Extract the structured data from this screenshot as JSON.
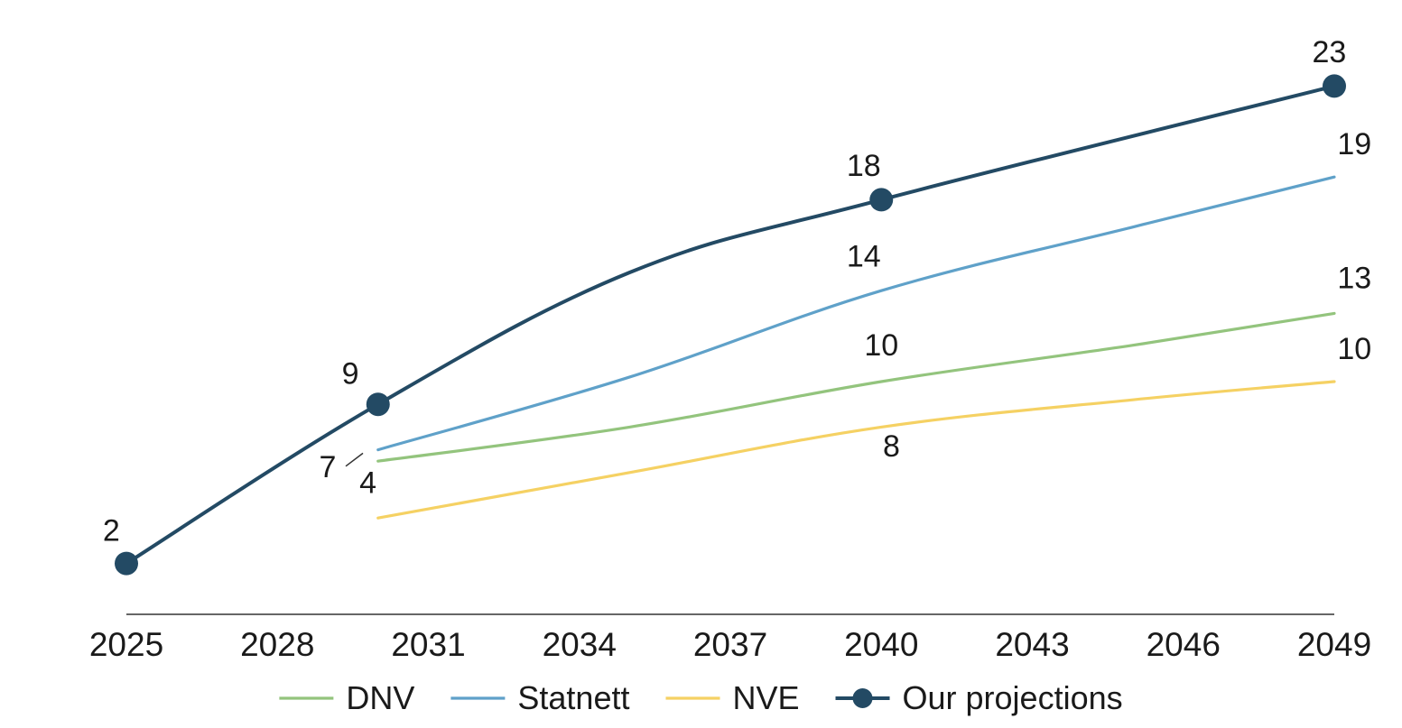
{
  "chart_data": {
    "type": "line",
    "title": "",
    "xlabel": "",
    "ylabel": "",
    "x_ticks": [
      "2025",
      "2028",
      "2031",
      "2034",
      "2037",
      "2040",
      "2043",
      "2046",
      "2049"
    ],
    "x_range": [
      2025,
      2049
    ],
    "y_range": [
      0,
      25
    ],
    "grid": false,
    "legend_position": "bottom",
    "series": [
      {
        "name": "DNV",
        "color": "#93c47d",
        "marker": false,
        "points": [
          [
            2030,
            6.5
          ],
          [
            2035,
            8
          ],
          [
            2040,
            10
          ],
          [
            2045,
            11.6
          ],
          [
            2049,
            13
          ]
        ],
        "labels": [
          {
            "x": 2030,
            "text": "4",
            "dx": -0.2,
            "dy": -1.4
          },
          {
            "x": 2040,
            "text": "10",
            "dx": 0,
            "dy": 1.15
          },
          {
            "x": 2049,
            "text": "13",
            "dx": 0.4,
            "dy": 1.1
          }
        ]
      },
      {
        "name": "Statnett",
        "color": "#5fa1c9",
        "marker": false,
        "points": [
          [
            2030,
            7
          ],
          [
            2035,
            10.2
          ],
          [
            2040,
            14
          ],
          [
            2045,
            16.8
          ],
          [
            2049,
            19
          ]
        ],
        "labels": [
          {
            "x": 2040,
            "text": "14",
            "dx": -0.35,
            "dy": 1.05
          },
          {
            "x": 2049,
            "text": "19",
            "dx": 0.4,
            "dy": 1.0
          }
        ]
      },
      {
        "name": "NVE",
        "color": "#f5d163",
        "marker": false,
        "points": [
          [
            2030,
            4
          ],
          [
            2035,
            6
          ],
          [
            2040,
            8
          ],
          [
            2045,
            9.2
          ],
          [
            2049,
            10
          ]
        ],
        "labels": [
          {
            "x": 2040,
            "text": "8",
            "dx": 0.2,
            "dy": -1.3
          },
          {
            "x": 2049,
            "text": "10",
            "dx": 0.4,
            "dy": 1.0
          }
        ]
      },
      {
        "name": "Our projections",
        "color": "#234a64",
        "marker": true,
        "points": [
          [
            2025,
            2
          ],
          [
            2030,
            9
          ],
          [
            2035,
            14.8
          ],
          [
            2040,
            18
          ],
          [
            2049,
            23
          ]
        ],
        "marker_x": [
          2025,
          2030,
          2040,
          2049
        ],
        "labels": [
          {
            "x": 2025,
            "text": "2",
            "dx": -0.3,
            "dy": 1.0
          },
          {
            "x": 2030,
            "text": "9",
            "dx": -0.55,
            "dy": 0.9
          },
          {
            "x": 2040,
            "text": "18",
            "dx": -0.35,
            "dy": 1.05
          },
          {
            "x": 2049,
            "text": "23",
            "dx": -0.1,
            "dy": 1.05
          }
        ]
      }
    ],
    "extra_labels": [
      {
        "text": "7",
        "x": 2029.0,
        "y": 5.8,
        "leader_to": [
          2029.7,
          6.85
        ]
      }
    ]
  }
}
